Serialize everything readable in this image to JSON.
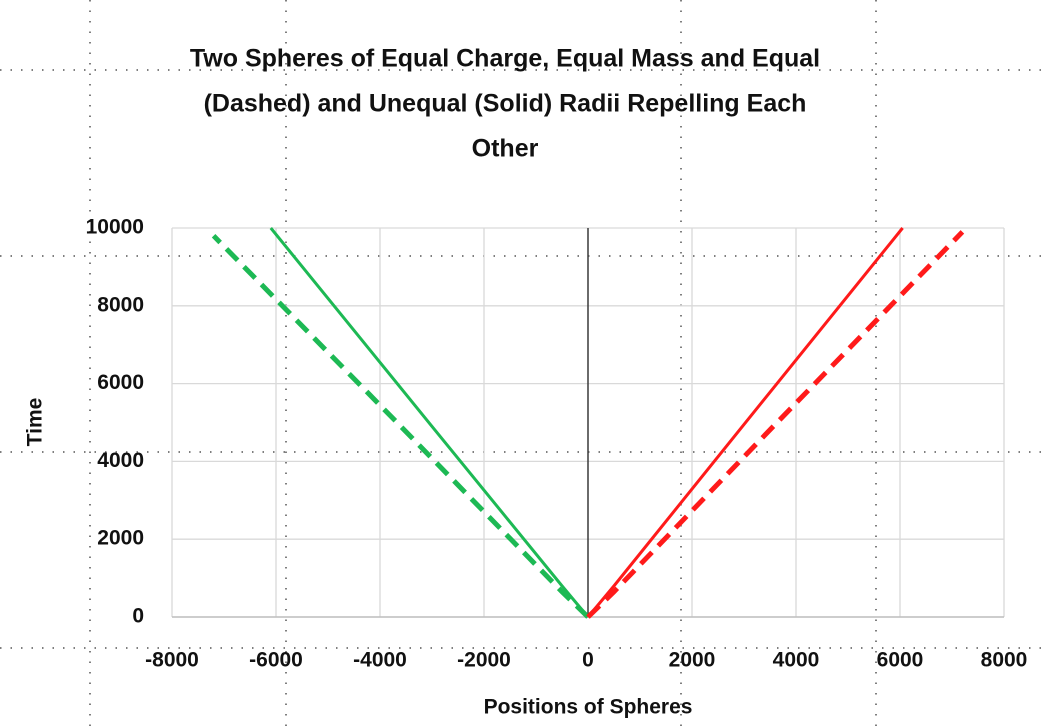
{
  "chart_data": {
    "type": "line",
    "title": [
      "Two Spheres of Equal Charge, Equal Mass and Equal",
      "(Dashed) and Unequal (Solid) Radii Repelling Each",
      "Other"
    ],
    "x_label": "Positions of Spheres",
    "y_label": "Time",
    "xlim": [
      -8000,
      8000
    ],
    "xticks": [
      -8000,
      -6000,
      -4000,
      -2000,
      0,
      2000,
      4000,
      6000,
      8000
    ],
    "ylim": [
      0,
      10000
    ],
    "yticks": [
      0,
      2000,
      4000,
      6000,
      8000,
      10000
    ],
    "grid": true,
    "series": [
      {
        "color": "#1db954",
        "dash": false,
        "x": [
          0,
          -500,
          -3000,
          -6100
        ],
        "values": [
          0,
          800,
          4900,
          10000
        ]
      },
      {
        "color": "#1db954",
        "dash": true,
        "x": [
          0,
          -500,
          -3600,
          -7200
        ],
        "values": [
          0,
          650,
          4900,
          9800
        ]
      },
      {
        "color": "#ff1a1a",
        "dash": false,
        "x": [
          0,
          500,
          3000,
          6050
        ],
        "values": [
          0,
          800,
          4950,
          10000
        ]
      },
      {
        "color": "#ff1a1a",
        "dash": true,
        "x": [
          0,
          500,
          3600,
          7200
        ],
        "values": [
          0,
          650,
          4950,
          9900
        ]
      }
    ]
  }
}
